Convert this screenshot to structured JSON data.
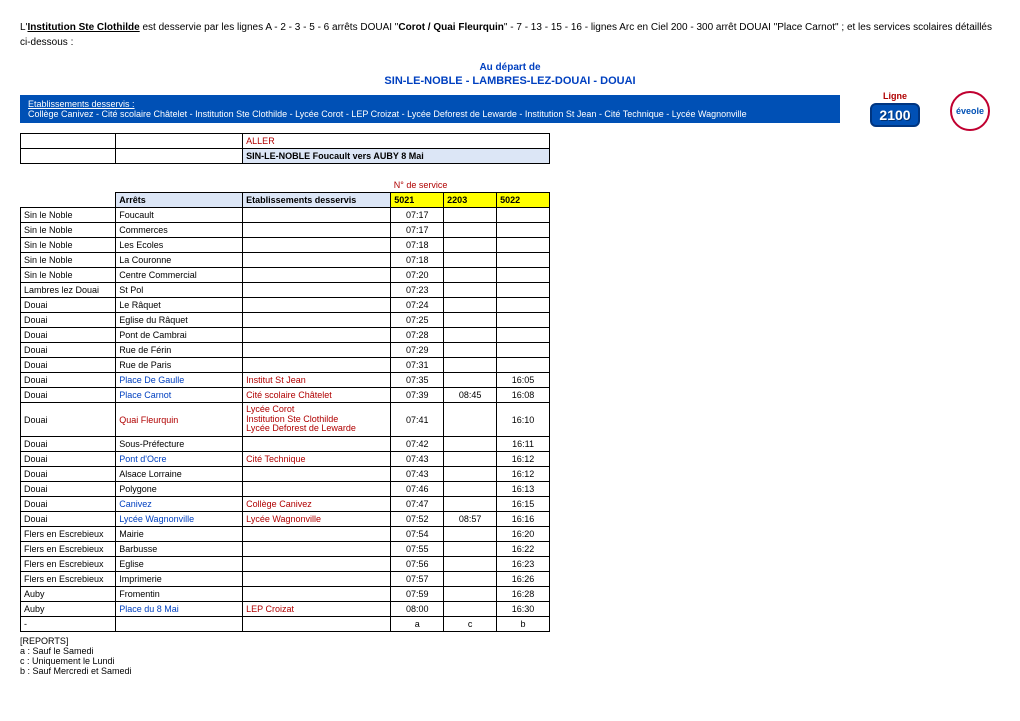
{
  "intro": {
    "prefix": "L'",
    "institution": "Institution Ste Clothilde",
    "mid1": " est desservie par les lignes A - 2 - 3 - 5 - 6 arrêts DOUAI \"",
    "corot": "Corot / Quai Fleurquin",
    "mid2": "\" - 7 - 13 - 15 - 16 - lignes Arc en Ciel 200 - 300 arrêt DOUAI \"Place Carnot\" ; et les services scolaires détaillés ci-dessous :"
  },
  "heading": "Au départ de",
  "subheading": "SIN-LE-NOBLE - LAMBRES-LEZ-DOUAI - DOUAI",
  "bluebar": {
    "title": "Etablissements desservis :",
    "body": "Collège Canivez - Cité scolaire Châtelet - Institution Ste Clothilde - Lycée Corot - LEP Croizat - Lycée Deforest de Lewarde - Institution St Jean - Cité Technique - Lycée Wagnonville"
  },
  "line": {
    "label": "Ligne",
    "number": "2100"
  },
  "logo": "éveole",
  "table": {
    "aller": "ALLER",
    "route": "SIN-LE-NOBLE Foucault vers AUBY 8 Mai",
    "nservice": "N° de service",
    "col_arrets": "Arrêts",
    "col_etab": "Etablissements desservis",
    "svc": [
      "5021",
      "2203",
      "5022"
    ],
    "rows": [
      {
        "c": "Sin le Noble",
        "a": "Foucault",
        "e": "",
        "t": [
          "07:17",
          "",
          ""
        ]
      },
      {
        "c": "Sin le Noble",
        "a": "Commerces",
        "e": "",
        "t": [
          "07:17",
          "",
          ""
        ]
      },
      {
        "c": "Sin le Noble",
        "a": "Les Ecoles",
        "e": "",
        "t": [
          "07:18",
          "",
          ""
        ]
      },
      {
        "c": "Sin le Noble",
        "a": "La Couronne",
        "e": "",
        "t": [
          "07:18",
          "",
          ""
        ]
      },
      {
        "c": "Sin le Noble",
        "a": "Centre Commercial",
        "e": "",
        "t": [
          "07:20",
          "",
          ""
        ]
      },
      {
        "c": "Lambres lez Douai",
        "a": "St Pol",
        "e": "",
        "t": [
          "07:23",
          "",
          ""
        ]
      },
      {
        "c": "Douai",
        "a": "Le Râquet",
        "e": "",
        "t": [
          "07:24",
          "",
          ""
        ]
      },
      {
        "c": "Douai",
        "a": "Eglise du Râquet",
        "e": "",
        "t": [
          "07:25",
          "",
          ""
        ]
      },
      {
        "c": "Douai",
        "a": "Pont de Cambrai",
        "e": "",
        "t": [
          "07:28",
          "",
          ""
        ]
      },
      {
        "c": "Douai",
        "a": "Rue de Férin",
        "e": "",
        "t": [
          "07:29",
          "",
          ""
        ]
      },
      {
        "c": "Douai",
        "a": "Rue de Paris",
        "e": "",
        "t": [
          "07:31",
          "",
          ""
        ]
      },
      {
        "c": "Douai",
        "a": "Place De Gaulle",
        "ac": "blue",
        "e": "Institut St Jean",
        "ec": "red",
        "t": [
          "07:35",
          "",
          "16:05"
        ]
      },
      {
        "c": "Douai",
        "a": "Place Carnot",
        "ac": "blue",
        "e": "Cité scolaire Châtelet",
        "ec": "red",
        "t": [
          "07:39",
          "08:45",
          "16:08"
        ]
      },
      {
        "c": "Douai",
        "a": "Quai Fleurquin",
        "ac": "red",
        "elist": [
          "Lycée Corot",
          "Institution Ste Clothilde",
          "Lycée Deforest de Lewarde"
        ],
        "ec": "red",
        "t": [
          "07:41",
          "",
          "16:10"
        ],
        "tall": true
      },
      {
        "c": "Douai",
        "a": "Sous-Préfecture",
        "e": "",
        "t": [
          "07:42",
          "",
          "16:11"
        ]
      },
      {
        "c": "Douai",
        "a": "Pont d'Ocre",
        "ac": "blue",
        "e": "Cité Technique",
        "ec": "red",
        "t": [
          "07:43",
          "",
          "16:12"
        ]
      },
      {
        "c": "Douai",
        "a": "Alsace Lorraine",
        "e": "",
        "t": [
          "07:43",
          "",
          "16:12"
        ]
      },
      {
        "c": "Douai",
        "a": "Polygone",
        "e": "",
        "t": [
          "07:46",
          "",
          "16:13"
        ]
      },
      {
        "c": "Douai",
        "a": "Canivez",
        "ac": "blue",
        "e": "Collège Canivez",
        "ec": "red",
        "t": [
          "07:47",
          "",
          "16:15"
        ]
      },
      {
        "c": "Douai",
        "a": "Lycée Wagnonville",
        "ac": "blue",
        "e": "Lycée Wagnonville",
        "ec": "red",
        "t": [
          "07:52",
          "08:57",
          "16:16"
        ]
      },
      {
        "c": "Flers en Escrebieux",
        "a": "Mairie",
        "e": "",
        "t": [
          "07:54",
          "",
          "16:20"
        ]
      },
      {
        "c": "Flers en Escrebieux",
        "a": "Barbusse",
        "e": "",
        "t": [
          "07:55",
          "",
          "16:22"
        ]
      },
      {
        "c": "Flers en Escrebieux",
        "a": "Eglise",
        "e": "",
        "t": [
          "07:56",
          "",
          "16:23"
        ]
      },
      {
        "c": "Flers en Escrebieux",
        "a": "Imprimerie",
        "e": "",
        "t": [
          "07:57",
          "",
          "16:26"
        ]
      },
      {
        "c": "Auby",
        "a": "Fromentin",
        "e": "",
        "t": [
          "07:59",
          "",
          "16:28"
        ]
      },
      {
        "c": "Auby",
        "a": "Place du 8 Mai",
        "ac": "blue",
        "e": "LEP Croizat",
        "ec": "red",
        "t": [
          "08:00",
          "",
          "16:30"
        ]
      }
    ],
    "footer": [
      "-",
      "",
      "",
      "a",
      "c",
      "b"
    ]
  },
  "reports": {
    "title": "[REPORTS]",
    "lines": [
      "a : Sauf le Samedi",
      "c : Uniquement le Lundi",
      "b : Sauf Mercredi et Samedi"
    ]
  }
}
